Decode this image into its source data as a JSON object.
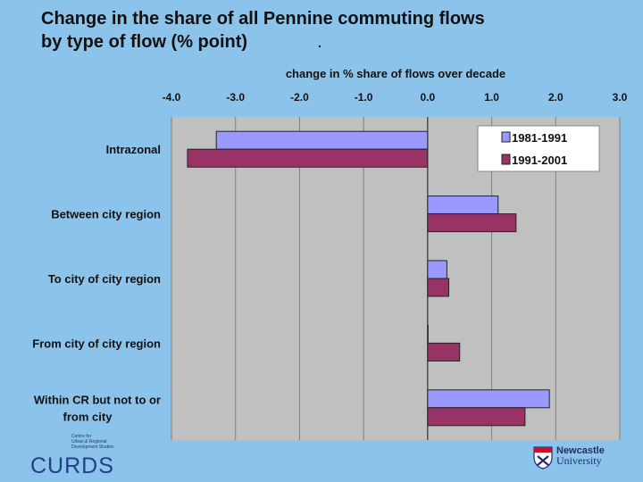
{
  "title_line1": "Change in the share of all Pennine commuting flows",
  "title_line2": "by type of flow (% point)",
  "title_mark": ".",
  "chart_data": {
    "type": "bar",
    "orientation": "horizontal",
    "title": "change in % share of flows over decade",
    "categories": [
      "Intrazonal",
      "Between city region",
      "To city of city region",
      "From city of city region",
      "Within CR but not to or from city"
    ],
    "category_label_lines": [
      [
        "Intrazonal"
      ],
      [
        "Between city region"
      ],
      [
        "To city of city region"
      ],
      [
        "From city of city region"
      ],
      [
        "Within CR but not to or",
        "from city"
      ]
    ],
    "series": [
      {
        "name": "1981-1991",
        "color": "#9999ff",
        "values": [
          -3.3,
          1.1,
          0.3,
          0.0,
          1.9
        ]
      },
      {
        "name": "1991-2001",
        "color": "#993366",
        "values": [
          -3.75,
          1.38,
          0.33,
          0.5,
          1.52
        ]
      }
    ],
    "xlim": [
      -4.0,
      3.0
    ],
    "xticks": [
      -4.0,
      -3.0,
      -2.0,
      -1.0,
      0.0,
      1.0,
      2.0,
      3.0
    ],
    "tick_labels": [
      "-4.0",
      "-3.0",
      "-2.0",
      "-1.0",
      "0.0",
      "1.0",
      "2.0",
      "3.0"
    ],
    "xaxis_position": "top",
    "gridlines": true,
    "legend_position": "top-right",
    "plot_background": "#c0c0c0",
    "grid_color": "#808080"
  },
  "logos": {
    "curds_small_lines": [
      "Centre for",
      "Urban & Regional",
      "Development Studies"
    ],
    "curds_name": "CURDS",
    "university_name_line1": "Newcastle",
    "university_name_line2": "University"
  }
}
